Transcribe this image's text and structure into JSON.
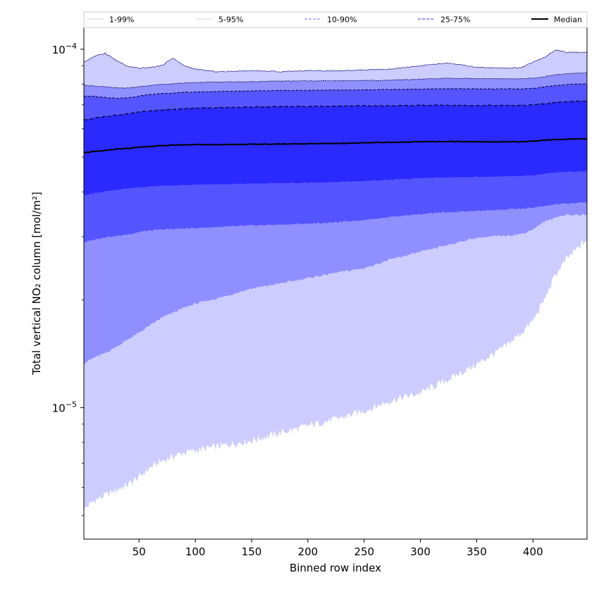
{
  "chart_data": {
    "type": "area",
    "xlabel": "Binned row index",
    "ylabel": "Total vertical NO₂ column [mol/m²]",
    "y_scale": "log",
    "xlim": [
      1,
      448
    ],
    "ylim": [
      4.3e-06,
      0.000115
    ],
    "x_ticks": [
      50,
      100,
      150,
      200,
      250,
      300,
      350,
      400
    ],
    "y_tick_labels": [
      {
        "value": 1e-05,
        "base": "10",
        "exp": "−5"
      },
      {
        "value": 0.0001,
        "base": "10",
        "exp": "−4"
      }
    ],
    "y_minor_ticks": [
      5e-06,
      6e-06,
      7e-06,
      8e-06,
      9e-06,
      2e-05,
      3e-05,
      4e-05,
      5e-05,
      6e-05,
      7e-05,
      8e-05,
      9e-05
    ],
    "legend": {
      "placement": "top",
      "entries": [
        {
          "label": "1-99%",
          "color": "#d9d9f2",
          "style": "solid"
        },
        {
          "label": "5-95%",
          "color": "#aaaadd",
          "style": "dotted"
        },
        {
          "label": "10-90%",
          "color": "#8f8ff5",
          "style": "dashed"
        },
        {
          "label": "25-75%",
          "color": "#5555ee",
          "style": "dashed"
        },
        {
          "label": "Median",
          "color": "#000000",
          "style": "solid"
        }
      ]
    },
    "band_colors": [
      "#ccccff",
      "#8f8fff",
      "#5555ff",
      "#2a2aff"
    ],
    "x": [
      1,
      10,
      20,
      30,
      40,
      50,
      60,
      70,
      80,
      90,
      100,
      120,
      150,
      175,
      200,
      225,
      250,
      275,
      300,
      325,
      350,
      375,
      390,
      400,
      410,
      420,
      430,
      448
    ],
    "series": [
      {
        "name": "1%",
        "values": [
          5.2e-06,
          5.5e-06,
          5.7e-06,
          5.9e-06,
          6.1e-06,
          6.4e-06,
          6.8e-06,
          7.1e-06,
          7.3e-06,
          7.5e-06,
          7.6e-06,
          7.8e-06,
          8.1e-06,
          8.5e-06,
          8.9e-06,
          9.3e-06,
          9.8e-06,
          1.05e-05,
          1.1e-05,
          1.2e-05,
          1.32e-05,
          1.48e-05,
          1.62e-05,
          1.75e-05,
          2e-05,
          2.35e-05,
          2.6e-05,
          2.95e-05
        ]
      },
      {
        "name": "5%",
        "values": [
          1.33e-05,
          1.38e-05,
          1.42e-05,
          1.48e-05,
          1.55e-05,
          1.62e-05,
          1.7e-05,
          1.78e-05,
          1.84e-05,
          1.9e-05,
          1.95e-05,
          2.02e-05,
          2.15e-05,
          2.22e-05,
          2.3e-05,
          2.38e-05,
          2.45e-05,
          2.6e-05,
          2.72e-05,
          2.85e-05,
          2.98e-05,
          3.02e-05,
          3.05e-05,
          3.15e-05,
          3.3e-05,
          3.4e-05,
          3.45e-05,
          3.45e-05
        ]
      },
      {
        "name": "10%",
        "values": [
          2.9e-05,
          2.95e-05,
          3e-05,
          3.02e-05,
          3.05e-05,
          3.1e-05,
          3.13e-05,
          3.15e-05,
          3.16e-05,
          3.17e-05,
          3.18e-05,
          3.2e-05,
          3.23e-05,
          3.25e-05,
          3.27e-05,
          3.3e-05,
          3.35e-05,
          3.42e-05,
          3.48e-05,
          3.52e-05,
          3.55e-05,
          3.58e-05,
          3.6e-05,
          3.62e-05,
          3.66e-05,
          3.7e-05,
          3.72e-05,
          3.75e-05
        ]
      },
      {
        "name": "25%",
        "values": [
          3.92e-05,
          3.98e-05,
          4.02e-05,
          4.06e-05,
          4.1e-05,
          4.13e-05,
          4.15e-05,
          4.17e-05,
          4.18e-05,
          4.19e-05,
          4.2e-05,
          4.21e-05,
          4.23e-05,
          4.24e-05,
          4.25e-05,
          4.27e-05,
          4.3e-05,
          4.34e-05,
          4.38e-05,
          4.4e-05,
          4.42e-05,
          4.43e-05,
          4.44e-05,
          4.46e-05,
          4.5e-05,
          4.54e-05,
          4.56e-05,
          4.58e-05
        ]
      },
      {
        "name": "Median",
        "values": [
          5.15e-05,
          5.18e-05,
          5.22e-05,
          5.26e-05,
          5.29e-05,
          5.33e-05,
          5.36e-05,
          5.38e-05,
          5.4e-05,
          5.41e-05,
          5.42e-05,
          5.42e-05,
          5.43e-05,
          5.44e-05,
          5.45e-05,
          5.46e-05,
          5.48e-05,
          5.5e-05,
          5.52e-05,
          5.53e-05,
          5.52e-05,
          5.52e-05,
          5.52e-05,
          5.54e-05,
          5.57e-05,
          5.6e-05,
          5.61e-05,
          5.63e-05
        ]
      },
      {
        "name": "75%",
        "values": [
          6.35e-05,
          6.42e-05,
          6.48e-05,
          6.55e-05,
          6.6e-05,
          6.68e-05,
          6.73e-05,
          6.77e-05,
          6.8e-05,
          6.82e-05,
          6.85e-05,
          6.87e-05,
          6.9e-05,
          6.92e-05,
          6.93e-05,
          6.94e-05,
          6.95e-05,
          6.96e-05,
          6.97e-05,
          6.98e-05,
          6.97e-05,
          6.97e-05,
          6.97e-05,
          6.99e-05,
          7.04e-05,
          7.1e-05,
          7.14e-05,
          7.18e-05
        ]
      },
      {
        "name": "90%",
        "values": [
          7.4e-05,
          7.38e-05,
          7.33e-05,
          7.3e-05,
          7.32e-05,
          7.4e-05,
          7.48e-05,
          7.52e-05,
          7.55e-05,
          7.58e-05,
          7.6e-05,
          7.62e-05,
          7.65e-05,
          7.67e-05,
          7.68e-05,
          7.69e-05,
          7.7e-05,
          7.72e-05,
          7.74e-05,
          7.76e-05,
          7.75e-05,
          7.75e-05,
          7.75e-05,
          7.78e-05,
          7.85e-05,
          7.92e-05,
          7.97e-05,
          8.02e-05
        ]
      },
      {
        "name": "95%",
        "values": [
          7.95e-05,
          7.9e-05,
          7.85e-05,
          7.8e-05,
          7.8e-05,
          7.85e-05,
          7.92e-05,
          7.98e-05,
          8.02e-05,
          8.05e-05,
          8.08e-05,
          8.1e-05,
          8.12e-05,
          8.15e-05,
          8.16e-05,
          8.17e-05,
          8.18e-05,
          8.2e-05,
          8.25e-05,
          8.3e-05,
          8.28e-05,
          8.27e-05,
          8.27e-05,
          8.3e-05,
          8.38e-05,
          8.48e-05,
          8.55e-05,
          8.6e-05
        ]
      },
      {
        "name": "99%",
        "values": [
          9.2e-05,
          9.55e-05,
          9.75e-05,
          9.3e-05,
          8.95e-05,
          8.85e-05,
          8.9e-05,
          9e-05,
          9.45e-05,
          9e-05,
          8.8e-05,
          8.65e-05,
          8.72e-05,
          8.66e-05,
          8.72e-05,
          8.7e-05,
          8.75e-05,
          8.8e-05,
          9e-05,
          9.15e-05,
          8.9e-05,
          8.85e-05,
          8.9e-05,
          9.2e-05,
          9.5e-05,
          9.95e-05,
          9.8e-05,
          9.8e-05
        ]
      }
    ]
  }
}
